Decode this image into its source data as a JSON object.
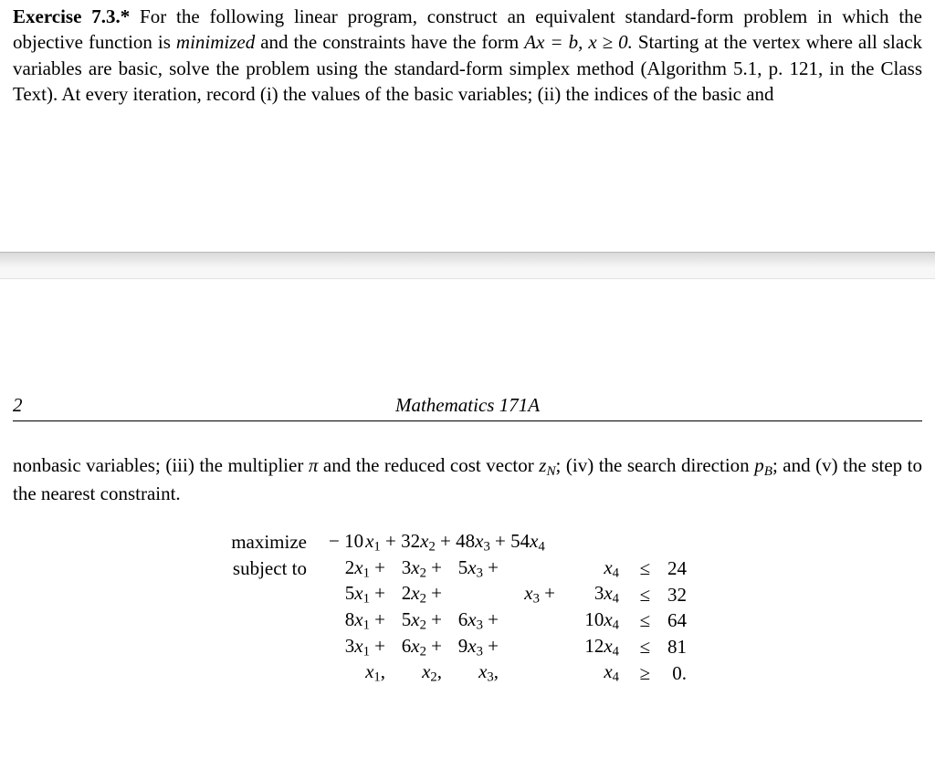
{
  "exercise": {
    "label": "Exercise 7.3.*",
    "text_part1": " For the following linear program, construct an equivalent standard-form problem in which the objective function is ",
    "minimized": "minimized",
    "text_part2": " and the constraints have the form ",
    "eq_inline": "Ax = b, x ≥ 0.",
    "text_part3": " Starting at the vertex where all slack variables are basic, solve the problem using the standard-form simplex method (Algorithm 5.1, p. 121, in the Class Text). At every iteration, record (i) the values of the basic variables; (ii) the indices of the basic and"
  },
  "page_header": {
    "number": "2",
    "title": "Mathematics 171A"
  },
  "lower": {
    "t1": "nonbasic variables; (iii) the multiplier ",
    "pi": "π",
    "t2": " and the reduced cost vector ",
    "zN_base": "z",
    "zN_sub": "N",
    "t3": "; (iv) the search direction ",
    "pB_base": "p",
    "pB_sub": "B",
    "t4": "; and (v) the step to the nearest constraint."
  },
  "lp": {
    "kw_max": "maximize",
    "kw_st": "subject to",
    "objective": {
      "c1": "− 10",
      "c2": "32",
      "c3": "48",
      "c4": "54"
    },
    "constraints": [
      {
        "a1": "2",
        "a2": "3",
        "a3": "5",
        "a4": "",
        "a4coef": "1",
        "rel": "≤",
        "rhs": "24"
      },
      {
        "a1": "5",
        "a2": "2",
        "a3": "",
        "a4": "3",
        "a4coef": "3",
        "rel": "≤",
        "rhs": "32",
        "a3coef": "1"
      },
      {
        "a1": "8",
        "a2": "5",
        "a3": "6",
        "a4": "10",
        "rel": "≤",
        "rhs": "64"
      },
      {
        "a1": "3",
        "a2": "6",
        "a3": "9",
        "a4": "12",
        "rel": "≤",
        "rhs": "81"
      }
    ],
    "nonneg_rel": "≥",
    "zero": "0."
  }
}
